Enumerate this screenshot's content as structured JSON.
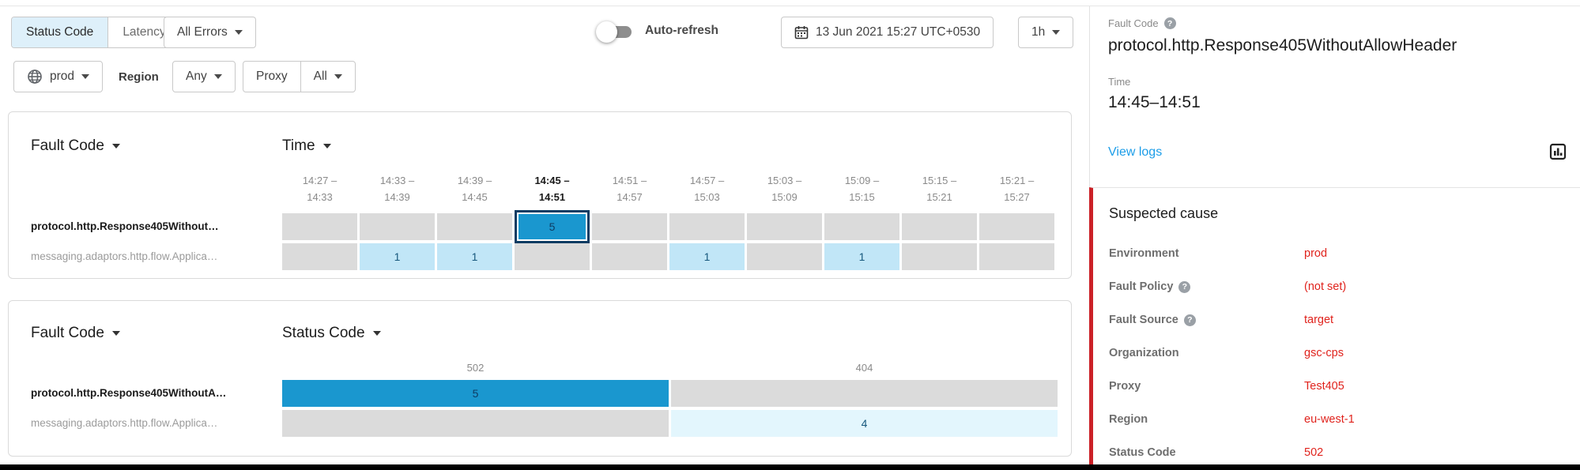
{
  "colors": {
    "accent_blue": "#1a97cf",
    "light_blue_cell": "#c1e6f7",
    "faint_blue_cell": "#e3f6fd",
    "gray_cell": "#dbdbdb",
    "selected_cell_border": "#0e3c63",
    "red_value_text": "#e0231d",
    "red_section_bar": "#cb2127",
    "link_blue": "#1c9de8",
    "selected_segment_bg": "#def0fa"
  },
  "toolbar": {
    "status_code_label": "Status Code",
    "latency_label": "Latency",
    "errors_dropdown": "All Errors",
    "environment_dropdown": "prod",
    "region_label": "Region",
    "region_dropdown": "Any",
    "proxy_label": "Proxy",
    "proxy_dropdown": "All",
    "auto_refresh_label": "Auto-refresh",
    "datetime": "13 Jun 2021 15:27 UTC+0530",
    "range_dropdown": "1h"
  },
  "heatmaps": {
    "time": {
      "fault_code_header": "Fault Code",
      "time_header": "Time",
      "columns": [
        [
          "14:27 –",
          "14:33"
        ],
        [
          "14:33 –",
          "14:39"
        ],
        [
          "14:39 –",
          "14:45"
        ],
        [
          "14:45 –",
          "14:51"
        ],
        [
          "14:51 –",
          "14:57"
        ],
        [
          "14:57 –",
          "15:03"
        ],
        [
          "15:03 –",
          "15:09"
        ],
        [
          "15:09 –",
          "15:15"
        ],
        [
          "15:15 –",
          "15:21"
        ],
        [
          "15:21 –",
          "15:27"
        ]
      ],
      "selected_column_index": 3,
      "rows": [
        {
          "label": "protocol.http.Response405Without…",
          "emphasis": true,
          "cells": [
            {
              "level": 0
            },
            {
              "level": 0
            },
            {
              "level": 0
            },
            {
              "value": 5,
              "level": 2,
              "selected": true
            },
            {
              "level": 0
            },
            {
              "level": 0
            },
            {
              "level": 0
            },
            {
              "level": 0
            },
            {
              "level": 0
            },
            {
              "level": 0
            }
          ]
        },
        {
          "label": "messaging.adaptors.http.flow.Applica…",
          "emphasis": false,
          "cells": [
            {
              "level": 0
            },
            {
              "value": 1,
              "level": 1
            },
            {
              "value": 1,
              "level": 1
            },
            {
              "level": 0
            },
            {
              "level": 0
            },
            {
              "value": 1,
              "level": 1
            },
            {
              "level": 0
            },
            {
              "value": 1,
              "level": 1
            },
            {
              "level": 0
            },
            {
              "level": 0
            }
          ]
        }
      ]
    },
    "status": {
      "fault_code_header": "Fault Code",
      "status_code_header": "Status Code",
      "columns": [
        "502",
        "404"
      ],
      "rows": [
        {
          "label": "protocol.http.Response405WithoutA…",
          "emphasis": true,
          "cells": [
            {
              "value": 5,
              "level": 2
            },
            {
              "level": 0
            }
          ]
        },
        {
          "label": "messaging.adaptors.http.flow.Applica…",
          "emphasis": false,
          "cells": [
            {
              "level": 0
            },
            {
              "value": 4,
              "level": 3
            }
          ]
        }
      ]
    }
  },
  "detail_panel": {
    "fault_code_label": "Fault Code",
    "fault_code_value": "protocol.http.Response405WithoutAllowHeader",
    "time_label": "Time",
    "time_value": "14:45–14:51",
    "view_logs_link": "View logs",
    "suspected_cause_title": "Suspected cause",
    "attributes": [
      {
        "label": "Environment",
        "value": "prod",
        "help": false
      },
      {
        "label": "Fault Policy",
        "value": "(not set)",
        "help": true
      },
      {
        "label": "Fault Source",
        "value": "target",
        "help": true
      },
      {
        "label": "Organization",
        "value": "gsc-cps",
        "help": false
      },
      {
        "label": "Proxy",
        "value": "Test405",
        "help": false
      },
      {
        "label": "Region",
        "value": "eu-west-1",
        "help": false
      },
      {
        "label": "Status Code",
        "value": "502",
        "help": false
      }
    ]
  }
}
